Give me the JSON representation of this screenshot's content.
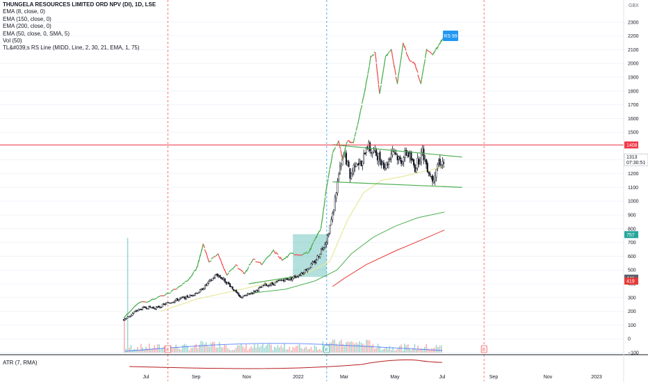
{
  "header": {
    "title": "THUNGELA RESOURCES LIMITED ORD NPV (DI), 1D, LSE",
    "indicators": [
      "EMA (8, close, 0)",
      "EMA (150, close, 0)",
      "EMA (200, close, 0)",
      "EMA (50, close, 0, SMA, 5)",
      "Vol (50)",
      "TL&#039;s RS Line (MIDD, Line, 2, 30, 21, EMA, 1, 75)"
    ]
  },
  "atr_label": "ATR (7, RMA)",
  "currency": "GBX",
  "rs_badge": "RS 99",
  "earnings_marker": "E",
  "price_tags": {
    "resistance": "1408",
    "last": "1313",
    "countdown": "07:30:51",
    "tag_757": "757",
    "tag_441": "441",
    "tag_419": "419"
  },
  "colors": {
    "resistance_line": "#f23645",
    "ema_yellow": "#e8e79a",
    "ema_green": "#4caf50",
    "ema_red": "#e53935",
    "rs_up": "#4caf50",
    "rs_down": "#ef5350",
    "channel": "#4caf50",
    "box_fill": "#26a69a",
    "badge": "#2196f3",
    "vertical_red": "#ef5350",
    "vertical_blue": "#2196f3"
  },
  "chart_data": {
    "type": "line",
    "title": "THUNGELA RESOURCES LIMITED ORD NPV (DI), 1D, LSE",
    "xlabel": "",
    "ylabel": "GBX",
    "ylim": [
      -100,
      2400
    ],
    "x_ticks": [
      "Jul",
      "Sep",
      "Nov",
      "2022",
      "Mar",
      "May",
      "Jul",
      "Sep",
      "Nov",
      "2023"
    ],
    "y_ticks": [
      -100,
      0,
      100,
      200,
      300,
      400,
      500,
      600,
      700,
      800,
      900,
      1000,
      1100,
      1200,
      1300,
      1400,
      1500,
      1600,
      1700,
      1800,
      1900,
      2000,
      2100,
      2200,
      2300
    ],
    "resistance_level": 1408,
    "last_price": 1313,
    "series": [
      {
        "values": [
          [
            0,
            140
          ],
          [
            0.3,
            160
          ],
          [
            0.8,
            200
          ],
          [
            1.5,
            230
          ],
          [
            2.2,
            225
          ],
          [
            3.0,
            260
          ],
          [
            3.8,
            290
          ],
          [
            4.5,
            310
          ],
          [
            5.2,
            350
          ],
          [
            5.8,
            410
          ],
          [
            6.3,
            470
          ],
          [
            6.8,
            430
          ],
          [
            7.3,
            380
          ],
          [
            7.9,
            300
          ],
          [
            8.4,
            320
          ],
          [
            9.0,
            350
          ],
          [
            9.6,
            390
          ],
          [
            10.2,
            400
          ],
          [
            10.8,
            430
          ],
          [
            11.4,
            440
          ],
          [
            12.0,
            470
          ],
          [
            12.6,
            520
          ],
          [
            13.0,
            560
          ],
          [
            13.4,
            640
          ],
          [
            13.8,
            720
          ],
          [
            14.2,
            900
          ],
          [
            14.6,
            1180
          ],
          [
            15.0,
            1350
          ],
          [
            15.4,
            1180
          ],
          [
            15.8,
            1300
          ],
          [
            16.2,
            1250
          ],
          [
            16.5,
            1420
          ],
          [
            16.8,
            1370
          ],
          [
            17.3,
            1330
          ],
          [
            17.8,
            1250
          ],
          [
            18.3,
            1380
          ],
          [
            18.8,
            1290
          ],
          [
            19.3,
            1360
          ],
          [
            19.8,
            1240
          ],
          [
            20.3,
            1360
          ],
          [
            20.7,
            1230
          ],
          [
            21.0,
            1160
          ],
          [
            21.4,
            1290
          ],
          [
            21.8,
            1280
          ]
        ]
      },
      {
        "values": [
          [
            0,
            150
          ],
          [
            1,
            260
          ],
          [
            2,
            285
          ],
          [
            3,
            330
          ],
          [
            3.8,
            380
          ],
          [
            4.5,
            440
          ],
          [
            5.0,
            520
          ],
          [
            5.4,
            690
          ],
          [
            5.8,
            560
          ],
          [
            6.4,
            620
          ],
          [
            7.0,
            460
          ],
          [
            7.6,
            540
          ],
          [
            8.2,
            470
          ],
          [
            8.8,
            580
          ],
          [
            9.4,
            540
          ],
          [
            10.2,
            640
          ],
          [
            10.8,
            570
          ],
          [
            11.4,
            620
          ],
          [
            12.0,
            610
          ],
          [
            12.6,
            630
          ],
          [
            13.0,
            720
          ],
          [
            13.4,
            800
          ],
          [
            13.8,
            1100
          ],
          [
            14.2,
            1350
          ],
          [
            14.6,
            1440
          ],
          [
            14.9,
            1300
          ],
          [
            15.2,
            1440
          ],
          [
            15.6,
            1420
          ],
          [
            16.0,
            1600
          ],
          [
            16.4,
            1800
          ],
          [
            16.8,
            2050
          ],
          [
            17.1,
            2080
          ],
          [
            17.4,
            1780
          ],
          [
            17.8,
            2050
          ],
          [
            18.2,
            2100
          ],
          [
            18.6,
            1850
          ],
          [
            19.0,
            2150
          ],
          [
            19.4,
            2030
          ],
          [
            19.8,
            2000
          ],
          [
            20.2,
            1850
          ],
          [
            20.6,
            2100
          ],
          [
            21.0,
            2060
          ],
          [
            21.4,
            2130
          ],
          [
            21.8,
            2200
          ]
        ]
      }
    ],
    "ema_yellow": [
      [
        2.5,
        200
      ],
      [
        5,
        290
      ],
      [
        8,
        360
      ],
      [
        10.5,
        420
      ],
      [
        12.5,
        480
      ],
      [
        14,
        560
      ],
      [
        15.2,
        860
      ],
      [
        16.3,
        1060
      ],
      [
        17.5,
        1150
      ],
      [
        19,
        1180
      ],
      [
        20.2,
        1210
      ],
      [
        21.8,
        1250
      ]
    ],
    "ema_green": [
      [
        8.5,
        330
      ],
      [
        11,
        360
      ],
      [
        13,
        420
      ],
      [
        14.5,
        500
      ],
      [
        15.5,
        620
      ],
      [
        17,
        740
      ],
      [
        18.5,
        820
      ],
      [
        20,
        880
      ],
      [
        21.8,
        920
      ]
    ],
    "ema_red": [
      [
        14.2,
        380
      ],
      [
        15,
        440
      ],
      [
        16.5,
        540
      ],
      [
        18.5,
        640
      ],
      [
        20.5,
        730
      ],
      [
        21.8,
        790
      ]
    ],
    "channel_upper": [
      [
        14.2,
        1410
      ],
      [
        23.0,
        1320
      ]
    ],
    "channel_lower": [
      [
        14.2,
        1140
      ],
      [
        23.0,
        1100
      ]
    ],
    "trendline": [
      [
        8.5,
        400
      ],
      [
        11.5,
        450
      ]
    ],
    "shaded_box": {
      "x0": 11.5,
      "x1": 13.8,
      "y0": 450,
      "y1": 760
    },
    "verticals": [
      {
        "x": 3.0,
        "color": "red"
      },
      {
        "x": 13.8,
        "color": "blue"
      },
      {
        "x": 24.5,
        "color": "red"
      }
    ],
    "volume_spike_x": 0.2
  }
}
